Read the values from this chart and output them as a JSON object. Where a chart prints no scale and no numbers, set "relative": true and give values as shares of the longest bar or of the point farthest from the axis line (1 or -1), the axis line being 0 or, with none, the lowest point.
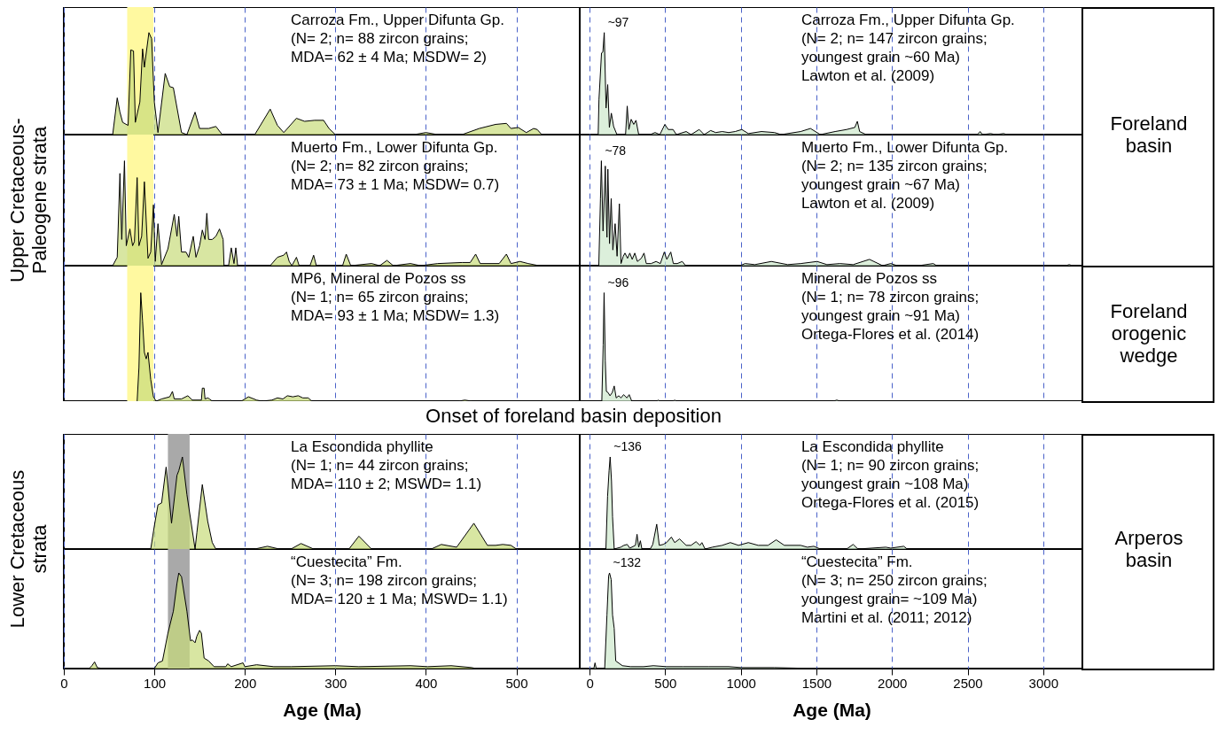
{
  "chart_data": [
    {
      "type": "area",
      "relative": true,
      "x": [
        54,
        59,
        62,
        65,
        71,
        74,
        77,
        79,
        84,
        87,
        89,
        94,
        97,
        100,
        104,
        112,
        117,
        121,
        130,
        136,
        145,
        150,
        160,
        168,
        175,
        211,
        228,
        236,
        243,
        257,
        266,
        277,
        287,
        293,
        300,
        387,
        400,
        413,
        440,
        459,
        477,
        489,
        494,
        502,
        511,
        519,
        523,
        528
      ],
      "series": [
        {
          "color": "#c8dc7a",
          "values": [
            0,
            0.36,
            0.22,
            0.12,
            0.09,
            0.83,
            0.82,
            0.12,
            0.32,
            0.84,
            0.66,
            1,
            0.94,
            0.32,
            0.02,
            0.6,
            0.47,
            0.46,
            0.02,
            0,
            0.22,
            0.06,
            0.06,
            0.08,
            0,
            0,
            0.25,
            0.09,
            0.02,
            0.16,
            0.13,
            0.14,
            0.14,
            0.06,
            0,
            0,
            0.02,
            0,
            0,
            0.06,
            0.1,
            0.11,
            0.06,
            0.07,
            0.02,
            0.06,
            0.05,
            0
          ]
        }
      ],
      "xlim": [
        0,
        570
      ],
      "xticks": [
        0,
        100,
        200,
        300,
        400,
        500
      ],
      "tick_labels": false,
      "grid": "x",
      "bands": [
        {
          "axis": "x",
          "from": 70,
          "to": 99,
          "color": "#fff9a0"
        }
      ],
      "annotations": [
        "Carroza Fm., Upper Difunta Gp.",
        "(N= 2; n= 88 zircon grains;",
        "MDA= 62 ± 4 Ma; MSDW= 2)"
      ]
    },
    {
      "type": "area",
      "relative": true,
      "x": [
        57,
        62,
        79,
        88,
        97,
        109,
        120,
        131,
        144,
        159,
        181,
        238,
        249,
        260,
        275,
        292,
        307,
        325,
        401,
        433,
        465,
        498,
        520,
        552,
        574,
        639,
        671,
        725,
        758,
        801,
        834,
        877,
        920,
        963,
        1007,
        1050,
        1137,
        1223,
        1267,
        1396,
        1461,
        1526,
        1624,
        1700,
        1754,
        1771,
        1786,
        1829,
        2565,
        2583,
        2598,
        2652,
        2685,
        2739,
        2760
      ],
      "series": [
        {
          "color": "#cde8cc",
          "values": [
            0,
            0.34,
            0.8,
            0.81,
            1,
            0.26,
            0.49,
            0.07,
            0.21,
            0.08,
            0,
            0,
            0.28,
            0.05,
            0.15,
            0.1,
            0.14,
            0,
            0,
            0.02,
            0,
            0.1,
            0.05,
            0.05,
            0,
            0.03,
            0,
            0.05,
            0,
            0.04,
            0.02,
            0.03,
            0.02,
            0.03,
            0.05,
            0.01,
            0.03,
            0.02,
            0,
            0.03,
            0.06,
            0,
            0.03,
            0.05,
            0.07,
            0.13,
            0.03,
            0,
            0,
            0.03,
            0,
            0.01,
            0,
            0.01,
            0
          ]
        }
      ],
      "xlim": [
        -65,
        3265
      ],
      "xticks": [
        0,
        500,
        1000,
        1500,
        2000,
        2500,
        3000
      ],
      "tick_labels": false,
      "grid": "x",
      "y2label": "Foreland basin",
      "annotations": [
        {
          "text": "~97",
          "x": 97,
          "y": 1
        },
        "Carroza Fm., Upper Difunta Gp.",
        "(N= 2; n= 147 zircon grains;",
        "youngest grain ~60 Ma)",
        "Lawton et al. (2009)"
      ]
    },
    {
      "type": "area",
      "relative": true,
      "x": [
        54,
        59,
        62,
        64,
        67,
        69,
        73,
        76,
        78,
        81,
        83,
        86,
        89,
        93,
        96,
        99,
        101,
        104,
        108,
        115,
        122,
        125,
        127,
        130,
        135,
        138,
        143,
        146,
        150,
        153,
        156,
        158,
        160,
        164,
        168,
        172,
        176,
        177,
        182,
        185,
        188,
        190,
        192,
        228,
        236,
        243,
        246,
        249,
        252,
        257,
        260,
        272,
        276,
        279,
        308,
        312,
        317,
        340,
        349,
        357,
        364,
        383,
        394,
        413,
        440,
        449,
        455,
        460,
        481,
        489,
        494,
        504,
        513,
        525
      ],
      "series": [
        {
          "color": "#c8dc7a",
          "values": [
            0,
            0.08,
            0.88,
            0.25,
            1,
            0.19,
            0.35,
            0.19,
            0.23,
            0.84,
            0.19,
            0.28,
            0.8,
            0.07,
            0.13,
            0.58,
            0.04,
            0.4,
            0.01,
            0.16,
            0.49,
            0.28,
            0.47,
            0.13,
            0.13,
            0.08,
            0.28,
            0.08,
            0.19,
            0.34,
            0.25,
            0.5,
            0.25,
            0.25,
            0.28,
            0.35,
            0.25,
            0,
            0,
            0.17,
            0.02,
            0.17,
            0,
            0,
            0.08,
            0.1,
            0.13,
            0.04,
            0,
            0.08,
            0,
            0,
            0.1,
            0,
            0,
            0.11,
            0,
            0.02,
            0,
            0.05,
            0,
            0.02,
            0,
            0.02,
            0.03,
            0.03,
            0.11,
            0.02,
            0.02,
            0.11,
            0.02,
            0.04,
            0.02,
            0
          ]
        }
      ],
      "xlim": [
        0,
        570
      ],
      "xticks": [
        0,
        100,
        200,
        300,
        400,
        500
      ],
      "tick_labels": false,
      "grid": "x",
      "ylabel": "Upper Cretaceous-Paleogene strata",
      "bands": [
        {
          "axis": "x",
          "from": 70,
          "to": 99,
          "color": "#fff9a0"
        }
      ],
      "annotations": [
        "Muerto Fm., Lower Difunta Gp.",
        "(N= 2; n= 82 zircon grains;",
        "MDA= 73 ± 1 Ma; MSDW= 0.7)"
      ]
    },
    {
      "type": "area",
      "relative": true,
      "x": [
        61,
        72,
        78,
        89,
        104,
        115,
        121,
        132,
        143,
        154,
        169,
        182,
        197,
        208,
        223,
        234,
        251,
        266,
        282,
        299,
        316,
        342,
        360,
        375,
        407,
        440,
        468,
        494,
        511,
        537,
        554,
        580,
        613,
        635,
        996,
        1028,
        1093,
        1202,
        1310,
        1396,
        1505,
        1570,
        1656,
        1743,
        1851,
        1938,
        1992,
        2035,
        2176,
        2273,
        2295,
        3150,
        3172,
        3193
      ],
      "series": [
        {
          "color": "#cde8cc",
          "values": [
            0,
            0.64,
            1,
            0.33,
            0.95,
            0.27,
            0.92,
            0.21,
            0.64,
            0.15,
            0.4,
            0.09,
            0.59,
            0.02,
            0.09,
            0.12,
            0.07,
            0.12,
            0.06,
            0.12,
            0.04,
            0.07,
            0.12,
            0.02,
            0.02,
            0.04,
            0.02,
            0.13,
            0.06,
            0.13,
            0.02,
            0.02,
            0.04,
            0,
            0,
            0.02,
            0.01,
            0.04,
            0.01,
            0.02,
            0.04,
            0.01,
            0.02,
            0.01,
            0.06,
            0,
            0.02,
            0,
            0,
            0.02,
            0,
            0,
            0.01,
            0
          ]
        }
      ],
      "xlim": [
        -65,
        3265
      ],
      "xticks": [
        0,
        500,
        1000,
        1500,
        2000,
        2500,
        3000
      ],
      "tick_labels": false,
      "grid": "x",
      "annotations": [
        {
          "text": "~78",
          "x": 78,
          "y": 1
        },
        "Muerto Fm., Lower Difunta Gp.",
        "(N= 2; n= 135 zircon grains;",
        "youngest grain ~67 Ma)",
        "Lawton et al. (2009)"
      ]
    },
    {
      "type": "area",
      "relative": true,
      "x": [
        81,
        83,
        85,
        87,
        89,
        91,
        93,
        96,
        99,
        102,
        108,
        117,
        120,
        122,
        130,
        137,
        142,
        152,
        153,
        155,
        156,
        159,
        161,
        164,
        196,
        204,
        213,
        219,
        230,
        236,
        242,
        247,
        253,
        259,
        264,
        270,
        274,
        436,
        443,
        451
      ],
      "series": [
        {
          "color": "#c8dc7a",
          "values": [
            0,
            0.31,
            1,
            0.74,
            0.45,
            0.39,
            0.45,
            0.2,
            0.04,
            0,
            0.02,
            0.04,
            0.09,
            0.02,
            0.02,
            0.05,
            0.01,
            0.01,
            0.12,
            0.12,
            0.02,
            0.03,
            0.02,
            0,
            0,
            0.04,
            0.01,
            0,
            0.01,
            0.03,
            0.02,
            0.05,
            0.04,
            0.05,
            0.03,
            0.03,
            0,
            0,
            0.01,
            0
          ]
        }
      ],
      "xlim": [
        0,
        570
      ],
      "xticks": [
        0,
        100,
        200,
        300,
        400,
        500
      ],
      "tick_labels": false,
      "grid": "x",
      "bands": [
        {
          "axis": "x",
          "from": 70,
          "to": 99,
          "color": "#fff9a0"
        }
      ],
      "annotations": [
        "MP6, Mineral de Pozos ss",
        "(N= 1; n= 65 zircon grains;",
        "MDA= 93 ± 1 Ma; MSDW= 1.3)"
      ]
    },
    {
      "type": "area",
      "relative": true,
      "x": [
        81,
        90,
        96,
        104,
        111,
        122,
        135,
        150,
        163,
        176,
        193,
        208,
        225,
        247,
        262,
        279,
        444,
        455,
        465,
        552,
        563,
        574,
        1613,
        1635,
        1656
      ],
      "series": [
        {
          "color": "#cde8cc",
          "values": [
            0,
            0.52,
            1,
            0.37,
            0.09,
            0.08,
            0.05,
            0.08,
            0.14,
            0.03,
            0.05,
            0.03,
            0.06,
            0.03,
            0.06,
            0,
            0,
            0.01,
            0,
            0,
            0.01,
            0,
            0,
            0.01,
            0
          ]
        }
      ],
      "xlim": [
        -65,
        3265
      ],
      "xticks": [
        0,
        500,
        1000,
        1500,
        2000,
        2500,
        3000
      ],
      "tick_labels": false,
      "grid": "x",
      "y2label": "Foreland orogenic wedge",
      "annotations": [
        {
          "text": "~96",
          "x": 96,
          "y": 1
        },
        "Mineral de Pozos ss",
        "(N= 1; n= 78 zircon grains;",
        "youngest grain ~91 Ma)",
        "Ortega-Flores et al. (2014)"
      ]
    },
    {
      "type": "area",
      "relative": true,
      "x": [
        96,
        100,
        104,
        108,
        113,
        119,
        125,
        127,
        131,
        136,
        145,
        147,
        153,
        159,
        164,
        168,
        211,
        225,
        238,
        251,
        262,
        276,
        315,
        326,
        340,
        406,
        417,
        434,
        453,
        468,
        477,
        485,
        494,
        500
      ],
      "series": [
        {
          "color": "#c8dc7a",
          "values": [
            0,
            0.25,
            0.48,
            0.5,
            0.89,
            0.28,
            0.8,
            0.85,
            1,
            0.59,
            0,
            0.18,
            0.7,
            0.3,
            0.07,
            0,
            0,
            0.03,
            0,
            0,
            0.06,
            0,
            0,
            0.14,
            0,
            0,
            0.05,
            0.02,
            0.28,
            0.04,
            0.04,
            0.05,
            0.04,
            0
          ]
        }
      ],
      "xlim": [
        0,
        570
      ],
      "xticks": [
        0,
        100,
        200,
        300,
        400,
        500
      ],
      "tick_labels": false,
      "grid": "x",
      "title": "Onset of foreland basin deposition",
      "ylabel": "Lower Cretaceous strata",
      "bands": [
        {
          "axis": "x",
          "from": 115,
          "to": 139,
          "color": "#a9a9a9"
        }
      ],
      "annotations": [
        "La Escondida phyllite",
        "(N= 1; n= 44 zircon grains;",
        "MDA= 110 ± 2; MSWD= 1.1)"
      ]
    },
    {
      "type": "area",
      "relative": true,
      "x": [
        108,
        119,
        129,
        136,
        145,
        152,
        163,
        206,
        227,
        249,
        266,
        303,
        314,
        325,
        336,
        346,
        401,
        418,
        444,
        461,
        487,
        509,
        541,
        563,
        595,
        639,
        671,
        704,
        730,
        743,
        764,
        812,
        877,
        931,
        985,
        1050,
        1115,
        1180,
        1234,
        1288,
        1396,
        1440,
        1483,
        1526,
        1700,
        1743,
        1775,
        1959,
        1992,
        2078,
        2100,
        2327
      ],
      "series": [
        {
          "color": "#cde8cc",
          "values": [
            0,
            0.57,
            0.85,
            1,
            0.74,
            0.35,
            0,
            0.02,
            0.04,
            0.05,
            0.01,
            0.04,
            0.16,
            0.02,
            0.09,
            0,
            0,
            0.05,
            0.27,
            0.04,
            0.05,
            0.07,
            0.13,
            0.07,
            0.11,
            0.04,
            0.04,
            0.08,
            0.04,
            0.07,
            0,
            0.02,
            0.04,
            0.07,
            0.04,
            0.07,
            0.04,
            0.04,
            0.1,
            0.04,
            0.04,
            0.02,
            0.03,
            0,
            0,
            0.05,
            0,
            0.02,
            0.01,
            0.03,
            0,
            0
          ]
        }
      ],
      "xlim": [
        -65,
        3265
      ],
      "xticks": [
        0,
        500,
        1000,
        1500,
        2000,
        2500,
        3000
      ],
      "tick_labels": false,
      "grid": "x",
      "y2label": "Arperos basin",
      "annotations": [
        {
          "text": "~136",
          "x": 136,
          "y": 1
        },
        "La Escondida phyllite",
        "(N= 1; n= 90 zircon grains;",
        "youngest grain ~108 Ma)",
        "Ortega-Flores et al. (2015)"
      ]
    },
    {
      "type": "area",
      "relative": true,
      "x": [
        0,
        28,
        31,
        34,
        37,
        43,
        100,
        104,
        109,
        115,
        121,
        125,
        127,
        130,
        136,
        140,
        142,
        145,
        147,
        150,
        152,
        155,
        160,
        166,
        179,
        181,
        185,
        198,
        200,
        213,
        232,
        251,
        300,
        326,
        383,
        402,
        428,
        451,
        455
      ],
      "series": [
        {
          "color": "#c8dc7a",
          "values": [
            0,
            0,
            0.03,
            0.07,
            0.01,
            0,
            0,
            0.06,
            0.08,
            0.37,
            0.6,
            0.89,
            1,
            0.96,
            0.6,
            0.29,
            0.3,
            0.27,
            0.34,
            0.4,
            0.37,
            0.11,
            0.08,
            0.02,
            0.02,
            0.05,
            0.02,
            0.06,
            0.02,
            0.04,
            0.02,
            0.02,
            0.03,
            0.02,
            0.03,
            0.02,
            0.03,
            0.01,
            0
          ]
        }
      ],
      "xlim": [
        0,
        570
      ],
      "xticks": [
        0,
        100,
        200,
        300,
        400,
        500
      ],
      "grid": "x",
      "xlabel": "Age (Ma)",
      "bands": [
        {
          "axis": "x",
          "from": 115,
          "to": 139,
          "color": "#a9a9a9"
        }
      ],
      "annotations": [
        "“Cuestecita” Fm.",
        "(N= 3; n= 198 zircon grains;",
        "MDA= 120 ± 1 Ma; MSWD= 1.1)"
      ]
    },
    {
      "type": "area",
      "relative": true,
      "x": [
        28,
        36,
        44,
        100,
        115,
        126,
        132,
        143,
        152,
        163,
        173,
        217,
        271,
        357,
        422,
        509,
        617,
        790,
        920,
        1007,
        1223,
        1505,
        2430
      ],
      "series": [
        {
          "color": "#cde8cc",
          "values": [
            0,
            0.06,
            0,
            0,
            0.56,
            0.97,
            1,
            0.93,
            0.56,
            0.42,
            0.08,
            0.03,
            0.02,
            0.02,
            0.03,
            0.02,
            0.02,
            0.02,
            0.02,
            0.01,
            0.01,
            0,
            0
          ]
        }
      ],
      "xlim": [
        -65,
        3265
      ],
      "xticks": [
        0,
        500,
        1000,
        1500,
        2000,
        2500,
        3000
      ],
      "grid": "x",
      "xlabel": "Age (Ma)",
      "annotations": [
        {
          "text": "~132",
          "x": 132,
          "y": 1
        },
        "“Cuestecita” Fm.",
        "(N= 3; n= 250 zircon grains;",
        "youngest grain= ~109 Ma)",
        "Martini et al. (2011; 2012)"
      ]
    }
  ]
}
